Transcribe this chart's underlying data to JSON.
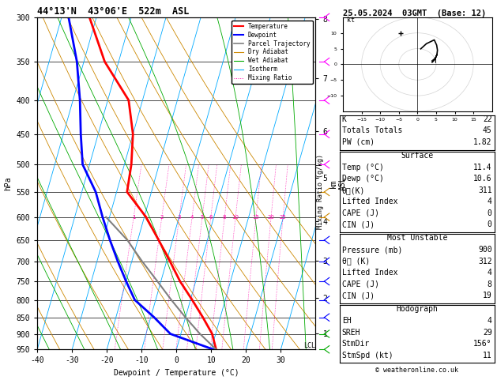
{
  "title_left": "44°13'N  43°06'E  522m  ASL",
  "title_right": "25.05.2024  03GMT  (Base: 12)",
  "xlabel": "Dewpoint / Temperature (°C)",
  "ylabel_left": "hPa",
  "pressure_ticks": [
    300,
    350,
    400,
    450,
    500,
    550,
    600,
    650,
    700,
    750,
    800,
    850,
    900,
    950
  ],
  "temp_ticks": [
    -40,
    -30,
    -20,
    -10,
    0,
    10,
    20,
    30
  ],
  "km_ticks": [
    1,
    2,
    3,
    4,
    5,
    6,
    7,
    8
  ],
  "km_pressures": [
    898,
    795,
    699,
    609,
    524,
    445,
    371,
    302
  ],
  "temperature_profile": {
    "pressure": [
      950,
      900,
      850,
      800,
      750,
      700,
      650,
      600,
      550,
      500,
      450,
      400,
      350,
      300
    ],
    "temperature": [
      11.4,
      9.0,
      5.0,
      0.5,
      -4.5,
      -9.0,
      -14.0,
      -19.5,
      -27.0,
      -28.0,
      -30.0,
      -34.0,
      -44.0,
      -52.0
    ]
  },
  "dewpoint_profile": {
    "pressure": [
      950,
      900,
      850,
      800,
      750,
      700,
      650,
      600,
      550,
      500,
      450,
      400,
      350,
      300
    ],
    "temperature": [
      10.6,
      -3.0,
      -9.0,
      -16.0,
      -20.0,
      -24.0,
      -28.0,
      -32.0,
      -36.0,
      -42.0,
      -45.0,
      -48.0,
      -52.0,
      -58.0
    ]
  },
  "parcel_trajectory": {
    "pressure": [
      950,
      900,
      850,
      800,
      750,
      700,
      650,
      600
    ],
    "temperature": [
      11.4,
      5.5,
      0.0,
      -5.5,
      -11.0,
      -17.0,
      -23.0,
      -31.0
    ]
  },
  "mixing_ratio_values": [
    1,
    2,
    3,
    4,
    5,
    6,
    8,
    10,
    15,
    20,
    25
  ],
  "colors": {
    "temperature": "#ff0000",
    "dewpoint": "#0000ff",
    "parcel": "#808080",
    "dry_adiabat": "#cc8800",
    "wet_adiabat": "#00aa00",
    "isotherm": "#00aaff",
    "mixing_ratio": "#ff00aa"
  },
  "stats": {
    "K": 22,
    "Totals_Totals": 45,
    "PW_cm": 1.82,
    "Surface_Temp": 11.4,
    "Surface_Dewp": 10.6,
    "Surface_theta_e": 311,
    "Lifted_Index": 4,
    "CAPE": 0,
    "CIN": 0,
    "MU_Pressure": 900,
    "MU_theta_e": 312,
    "MU_LI": 4,
    "MU_CAPE": 8,
    "MU_CIN": 19,
    "EH": 4,
    "SREH": 29,
    "StmDir": 156,
    "StmSpd": 11
  },
  "wind_barb_data": {
    "pressure": [
      300,
      350,
      400,
      450,
      500,
      550,
      600,
      650,
      700,
      750,
      800,
      850,
      900,
      950
    ],
    "speed_kt": [
      15,
      12,
      10,
      8,
      6,
      5,
      4,
      5,
      6,
      7,
      8,
      9,
      7,
      5
    ],
    "direction_deg": [
      200,
      210,
      220,
      230,
      240,
      250,
      260,
      250,
      240,
      230,
      220,
      210,
      200,
      190
    ],
    "colors": [
      "#ff00ff",
      "#ff00ff",
      "#ff00ff",
      "#ff00ff",
      "#ff00ff",
      "#cc8800",
      "#cc8800",
      "#0000ff",
      "#0000ff",
      "#0000ff",
      "#0000ff",
      "#0000ff",
      "#00aa00",
      "#00aa00"
    ]
  }
}
